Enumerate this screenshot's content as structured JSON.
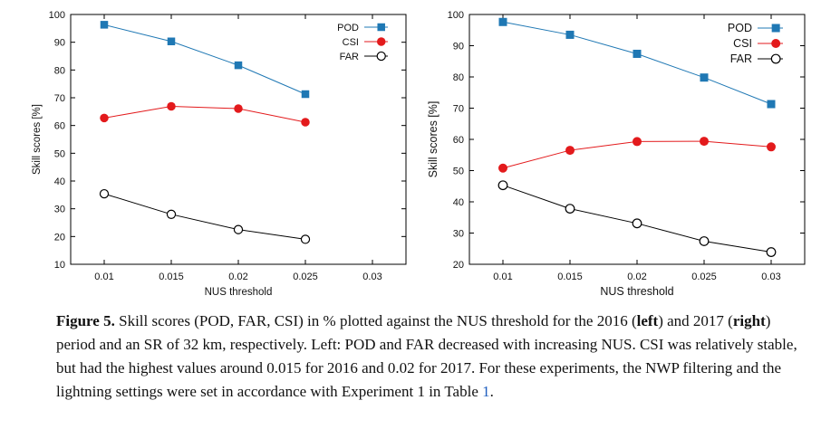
{
  "chart_data": [
    {
      "type": "line",
      "xlabel": "NUS threshold",
      "ylabel": "Skill scores [%]",
      "xlim": [
        0.0075,
        0.0325
      ],
      "ylim": [
        10,
        100
      ],
      "xticks": [
        "0.01",
        "0.015",
        "0.02",
        "0.025",
        "0.03"
      ],
      "yticks": [
        "10",
        "20",
        "30",
        "40",
        "50",
        "60",
        "70",
        "80",
        "90",
        "100"
      ],
      "legend": "top-right",
      "grid": false,
      "series": [
        {
          "name": "POD",
          "color": "#1f78b4",
          "marker": "square",
          "x": [
            0.01,
            0.015,
            0.02,
            0.025
          ],
          "y": [
            96.3,
            90.3,
            81.7,
            71.3
          ]
        },
        {
          "name": "CSI",
          "color": "#e31a1c",
          "marker": "circle",
          "x": [
            0.01,
            0.015,
            0.02,
            0.025
          ],
          "y": [
            62.7,
            66.9,
            66.1,
            61.2
          ]
        },
        {
          "name": "FAR",
          "color": "#000000",
          "marker": "open-circle",
          "x": [
            0.01,
            0.015,
            0.02,
            0.025
          ],
          "y": [
            35.4,
            28.0,
            22.5,
            19.0
          ]
        }
      ]
    },
    {
      "type": "line",
      "xlabel": "NUS threshold",
      "ylabel": "Skill scores [%]",
      "xlim": [
        0.0075,
        0.0325
      ],
      "ylim": [
        20,
        100
      ],
      "xticks": [
        "0.01",
        "0.015",
        "0.02",
        "0.025",
        "0.03"
      ],
      "yticks": [
        "20",
        "30",
        "40",
        "50",
        "60",
        "70",
        "80",
        "90",
        "100"
      ],
      "legend": "top-right",
      "grid": false,
      "series": [
        {
          "name": "POD",
          "color": "#1f78b4",
          "marker": "square",
          "x": [
            0.01,
            0.015,
            0.02,
            0.025,
            0.03
          ],
          "y": [
            97.6,
            93.5,
            87.4,
            79.8,
            71.3
          ]
        },
        {
          "name": "CSI",
          "color": "#e31a1c",
          "marker": "circle",
          "x": [
            0.01,
            0.015,
            0.02,
            0.025,
            0.03
          ],
          "y": [
            50.8,
            56.5,
            59.3,
            59.4,
            57.6
          ]
        },
        {
          "name": "FAR",
          "color": "#000000",
          "marker": "open-circle",
          "x": [
            0.01,
            0.015,
            0.02,
            0.025,
            0.03
          ],
          "y": [
            45.3,
            37.8,
            33.1,
            27.4,
            23.9
          ]
        }
      ]
    }
  ],
  "caption": {
    "label": "Figure 5.",
    "text_1": " Skill scores (POD, FAR, CSI) in % plotted against the NUS threshold for the 2016 (",
    "bold_1": "left",
    "text_2": ") and 2017 (",
    "bold_2": "right",
    "text_3": ") period and an SR of 32 km, respectively. Left: POD and FAR decreased with increasing NUS. CSI was relatively stable, but had the highest values around 0.015 for 2016 and 0.02 for 2017. For these experiments, the NWP filtering and the lightning settings were set in accordance with Experiment 1 in Table ",
    "ref": "1",
    "text_4": "."
  }
}
